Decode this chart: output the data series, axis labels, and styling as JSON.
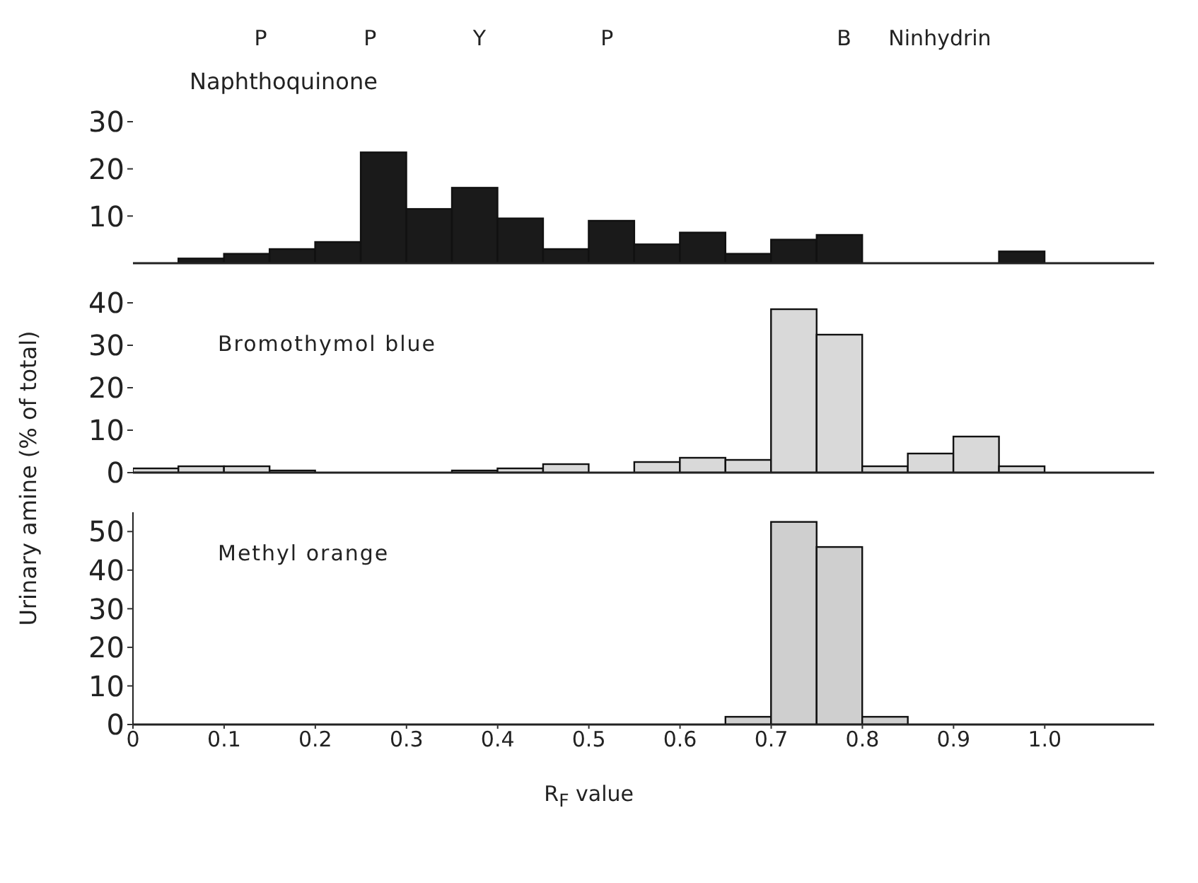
{
  "chart_data": [
    {
      "type": "histogram",
      "title": "Naphthoquinone",
      "bins": [
        0.05,
        0.1,
        0.15,
        0.2,
        0.25,
        0.3,
        0.35,
        0.4,
        0.45,
        0.5,
        0.55,
        0.6,
        0.65,
        0.7,
        0.75,
        0.8,
        0.85,
        0.9,
        0.95,
        1.0
      ],
      "values": [
        1,
        2,
        3,
        4.5,
        23.5,
        11.5,
        16,
        9.5,
        3,
        9,
        4,
        6.5,
        2,
        5,
        6,
        0,
        0,
        0,
        2.5
      ],
      "color": "#1a1a1a",
      "xlim": [
        0,
        1.12
      ],
      "ylim": [
        0,
        30
      ],
      "yticks": [
        10,
        20,
        30
      ],
      "tick_labels": "y",
      "annotations": [
        "P",
        "P",
        "Y",
        "P",
        "B",
        "Ninhydrin"
      ]
    },
    {
      "type": "histogram",
      "title": "Bromothymol blue",
      "ylabel": "Urinary amine (% of total)",
      "bins": [
        0,
        0.05,
        0.1,
        0.15,
        0.2,
        0.25,
        0.3,
        0.35,
        0.4,
        0.45,
        0.5,
        0.55,
        0.6,
        0.65,
        0.7,
        0.75,
        0.8,
        0.85,
        0.9,
        0.95,
        1.0
      ],
      "values": [
        1,
        1.5,
        1.5,
        0.5,
        0,
        0,
        0,
        0.5,
        1,
        2,
        0,
        2.5,
        3.5,
        3,
        38.5,
        32.5,
        1.5,
        4.5,
        8.5,
        1.5
      ],
      "color": "#d9d9d9",
      "xlim": [
        0,
        1.12
      ],
      "ylim": [
        0,
        40
      ],
      "yticks": [
        0,
        10,
        20,
        30,
        40
      ],
      "tick_labels": "y"
    },
    {
      "type": "histogram",
      "title": "Methyl orange",
      "xlabel": "R$_{F}$ value",
      "bins": [
        0.65,
        0.7,
        0.75,
        0.8,
        0.85
      ],
      "values": [
        2,
        52.5,
        46,
        2
      ],
      "color": "#cfcfcf",
      "xlim": [
        0,
        1.12
      ],
      "xticks": [
        0,
        0.1,
        0.2,
        0.3,
        0.4,
        0.5,
        0.6,
        0.7,
        0.8,
        0.9,
        {
          "value": 1,
          "label": "1.0"
        }
      ],
      "ylim": [
        0,
        55
      ],
      "yticks": [
        0,
        10,
        20,
        30,
        40,
        50
      ]
    }
  ]
}
